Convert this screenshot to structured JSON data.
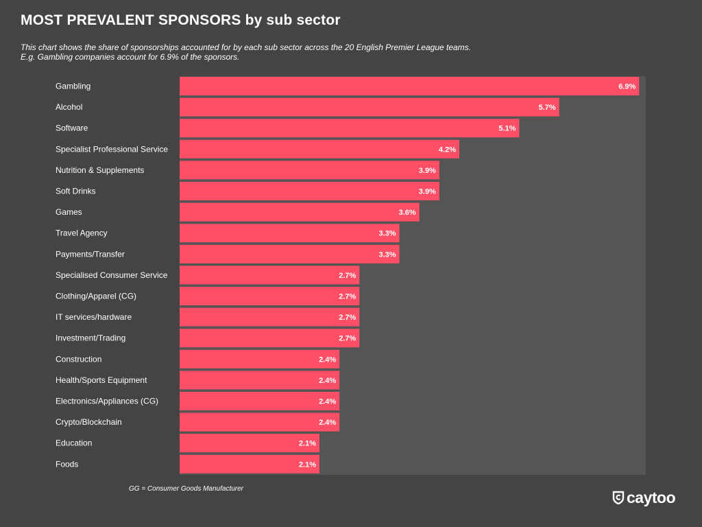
{
  "header": {
    "title": "MOST PREVALENT SPONSORS by sub sector",
    "subtitle_line1": "This chart shows the share of sponsorships accounted for by each sub sector across the 20 English Premier League teams.",
    "subtitle_line2": "E.g. Gambling companies account for 6.9% of the sponsors."
  },
  "footnote": "GG = Consumer Goods Manufacturer",
  "logo": {
    "text": "caytoo",
    "icon": "shield-c-icon"
  },
  "colors": {
    "background": "#444444",
    "plot_area": "#555555",
    "bar": "#ff4f67",
    "text": "#ffffff"
  },
  "chart_data": {
    "type": "bar",
    "orientation": "horizontal",
    "categories": [
      "Gambling",
      "Alcohol",
      "Software",
      "Specialist Professional Service",
      "Nutrition & Supplements",
      "Soft Drinks",
      "Games",
      "Travel Agency",
      "Payments/Transfer",
      "Specialised Consumer Service",
      "Clothing/Apparel (CG)",
      "IT services/hardware",
      "Investment/Trading",
      "Construction",
      "Health/Sports Equipment",
      "Electronics/Appliances (CG)",
      "Crypto/Blockchain",
      "Education",
      "Foods"
    ],
    "values": [
      6.9,
      5.7,
      5.1,
      4.2,
      3.9,
      3.9,
      3.6,
      3.3,
      3.3,
      2.7,
      2.7,
      2.7,
      2.7,
      2.4,
      2.4,
      2.4,
      2.4,
      2.1,
      2.1
    ],
    "data_labels": [
      "6.9%",
      "5.7%",
      "5.1%",
      "4.2%",
      "3.9%",
      "3.9%",
      "3.6%",
      "3.3%",
      "3.3%",
      "2.7%",
      "2.7%",
      "2.7%",
      "2.7%",
      "2.4%",
      "2.4%",
      "2.4%",
      "2.4%",
      "2.1%",
      "2.1%"
    ],
    "xlim": [
      0,
      7
    ],
    "grid": false,
    "legend": "none"
  }
}
